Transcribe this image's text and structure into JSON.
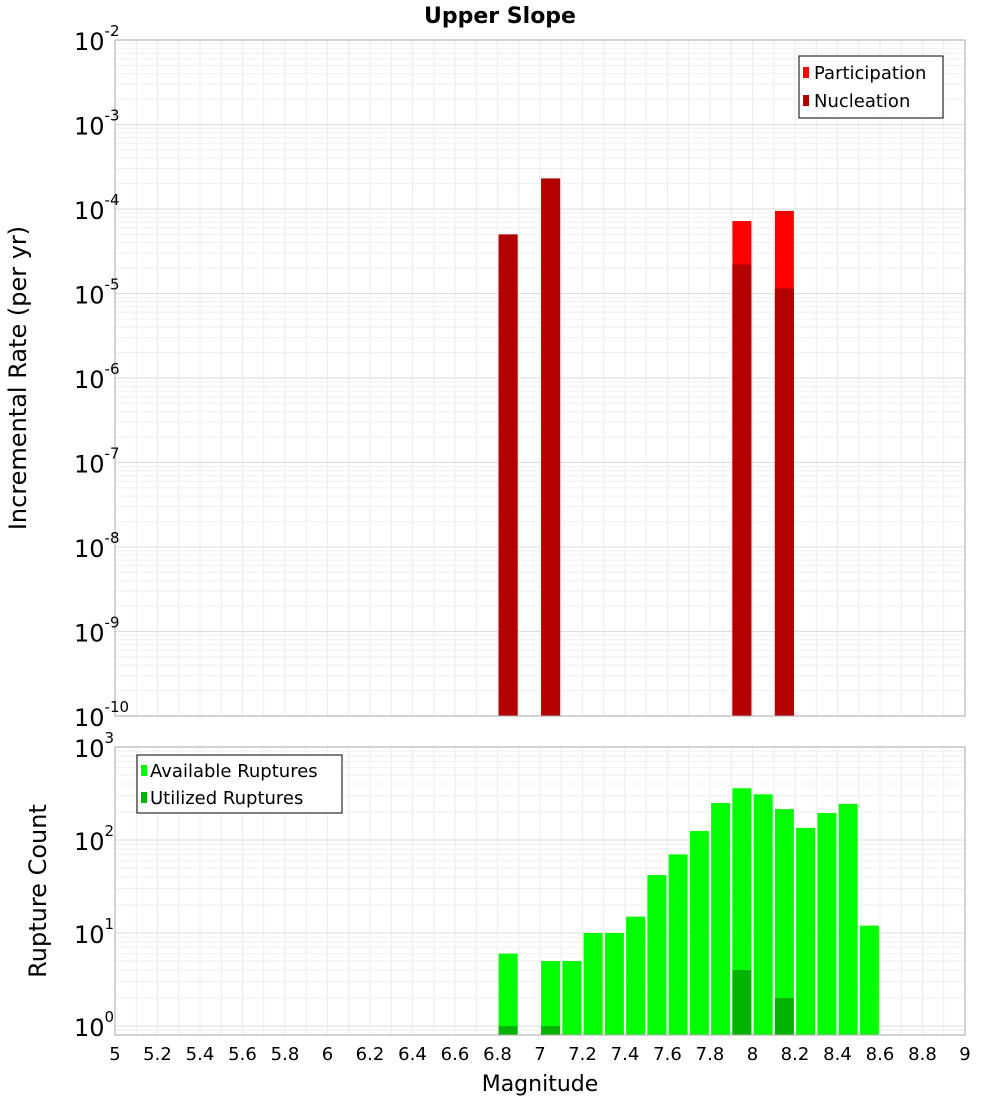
{
  "chart_data": [
    {
      "type": "bar",
      "title": "Upper Slope",
      "ylabel": "Incremental Rate (per yr)",
      "yscale": "log",
      "ylim": [
        1e-10,
        0.01
      ],
      "ytick_exponents": [
        "-10",
        "-9",
        "-8",
        "-7",
        "-6",
        "-5",
        "-4",
        "-3",
        "-2"
      ],
      "legend": {
        "position": "top-right",
        "entries": [
          "Participation",
          "Nucleation"
        ]
      },
      "colors": {
        "Participation": "#ff0000",
        "Nucleation": "#b30000"
      },
      "series": [
        {
          "name": "Participation",
          "x": [
            6.85,
            7.05,
            7.95,
            8.15
          ],
          "values": [
            5e-05,
            0.00023,
            7.2e-05,
            9.5e-05
          ]
        },
        {
          "name": "Nucleation",
          "x": [
            6.85,
            7.05,
            7.95,
            8.15
          ],
          "values": [
            5e-05,
            0.00023,
            2.2e-05,
            1.15e-05
          ]
        }
      ]
    },
    {
      "type": "bar",
      "ylabel": "Rupture Count",
      "yscale": "log",
      "ylim": [
        0.8,
        1000
      ],
      "ytick_exponents": [
        "0",
        "1",
        "2",
        "3"
      ],
      "legend": {
        "position": "top-left",
        "entries": [
          "Available Ruptures",
          "Utilized Ruptures"
        ]
      },
      "colors": {
        "Available Ruptures": "#00ff00",
        "Utilized Ruptures": "#00b300"
      },
      "series": [
        {
          "name": "Available Ruptures",
          "x": [
            6.85,
            7.05,
            7.15,
            7.25,
            7.35,
            7.45,
            7.55,
            7.65,
            7.75,
            7.85,
            7.95,
            8.05,
            8.15,
            8.25,
            8.35,
            8.45,
            8.55
          ],
          "values": [
            6,
            5,
            5,
            10,
            10,
            15,
            42,
            70,
            125,
            250,
            360,
            310,
            215,
            135,
            195,
            245,
            12
          ]
        },
        {
          "name": "Utilized Ruptures",
          "x": [
            6.85,
            7.05,
            7.95,
            8.15
          ],
          "values": [
            1,
            1,
            4,
            2
          ]
        }
      ]
    }
  ],
  "xaxis": {
    "label": "Magnitude",
    "xlim": [
      5,
      9
    ],
    "ticks": [
      "5",
      "5.2",
      "5.4",
      "5.6",
      "5.8",
      "6",
      "6.2",
      "6.4",
      "6.6",
      "6.8",
      "7",
      "7.2",
      "7.4",
      "7.6",
      "7.8",
      "8",
      "8.2",
      "8.4",
      "8.6",
      "8.8",
      "9"
    ]
  },
  "grid": true
}
